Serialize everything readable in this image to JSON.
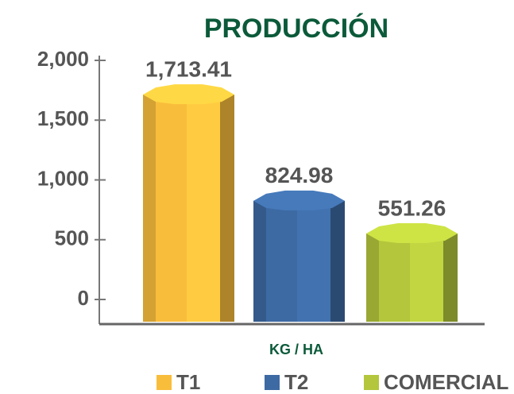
{
  "chart_data": {
    "type": "bar",
    "title": "PRODUCCIÓN",
    "x_label": "KG / HA",
    "categories": [
      "T1",
      "T2",
      "COMERCIAL"
    ],
    "values": [
      1713.41,
      824.98,
      551.26
    ],
    "value_labels": [
      "1,713.41",
      "824.98",
      "551.26"
    ],
    "colors": [
      "#f9bd3c",
      "#3d6aa3",
      "#b3c63c"
    ],
    "ylim": [
      0,
      2000
    ],
    "yticks": [
      0,
      500,
      {
        "value": 1000,
        "label": "1,000"
      },
      {
        "value": 1500,
        "label": "1,500"
      },
      {
        "value": 2000,
        "label": "2,000"
      }
    ]
  }
}
